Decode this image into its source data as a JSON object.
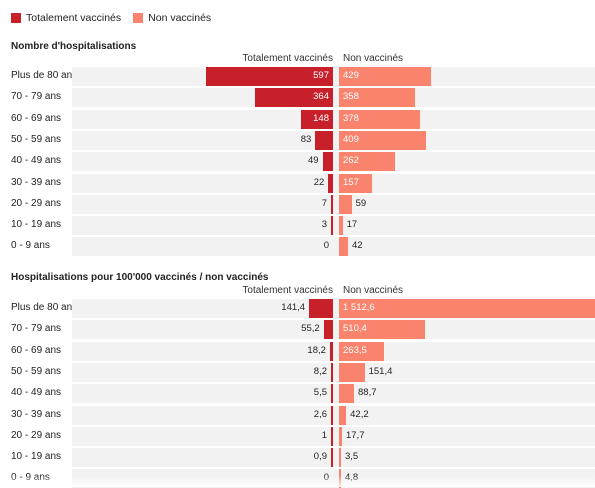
{
  "legend": [
    {
      "name": "Totalement vaccinés",
      "color": "#c8202a"
    },
    {
      "name": "Non vaccinés",
      "color": "#f9836d"
    }
  ],
  "chart_data": [
    {
      "type": "bar",
      "title": "Nombre d'hospitalisations",
      "categories": [
        "Plus de 80 ans",
        "70 - 79 ans",
        "60 - 69 ans",
        "50 - 59 ans",
        "40 - 49 ans",
        "30 - 39 ans",
        "20 - 29 ans",
        "10 - 19 ans",
        "0 - 9 ans"
      ],
      "series": [
        {
          "name": "Totalement vaccinés",
          "values": [
            597,
            364,
            148,
            83,
            49,
            22,
            7,
            3,
            0
          ],
          "labels": [
            "597",
            "364",
            "148",
            "83",
            "49",
            "22",
            "7",
            "3",
            "0"
          ]
        },
        {
          "name": "Non vaccinés",
          "values": [
            429,
            358,
            378,
            409,
            262,
            157,
            59,
            17,
            42
          ],
          "labels": [
            "429",
            "358",
            "378",
            "409",
            "262",
            "157",
            "59",
            "17",
            "42"
          ]
        }
      ],
      "max": 1200,
      "legend": "top-left",
      "grid": false
    },
    {
      "type": "bar",
      "title": "Hospitalisations pour 100'000 vaccinés / non vaccinés",
      "categories": [
        "Plus de 80 ans",
        "70 - 79 ans",
        "60 - 69 ans",
        "50 - 59 ans",
        "40 - 49 ans",
        "30 - 39 ans",
        "20 - 29 ans",
        "10 - 19 ans",
        "0 - 9 ans"
      ],
      "series": [
        {
          "name": "Totalement vaccinés",
          "values": [
            141.4,
            55.2,
            18.2,
            8.2,
            5.5,
            2.6,
            1,
            0.9,
            0
          ],
          "labels": [
            "141,4",
            "55,2",
            "18,2",
            "8,2",
            "5,5",
            "2,6",
            "1",
            "0,9",
            "0"
          ]
        },
        {
          "name": "Non vaccinés",
          "values": [
            1512.6,
            510.4,
            263.5,
            151.4,
            88.7,
            42.2,
            17.7,
            3.5,
            4.8
          ],
          "labels": [
            "1 512,6",
            "510,4",
            "263,5",
            "151,4",
            "88,7",
            "42,2",
            "17,7",
            "3,5",
            "4,8"
          ]
        }
      ],
      "max": 1512.6,
      "legend": "top-left",
      "grid": false
    }
  ]
}
